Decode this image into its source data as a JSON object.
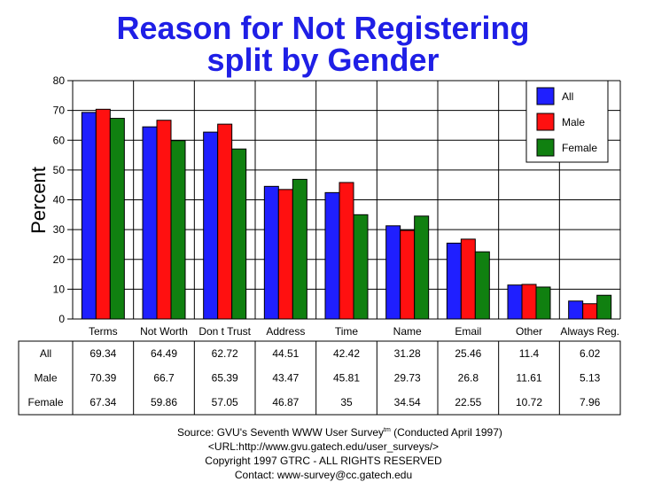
{
  "title_line1": "Reason for Not Registering",
  "title_line2": "split by Gender",
  "chart_data": {
    "type": "bar",
    "title": "Reason for Not Registering split by Gender",
    "ylabel": "Percent",
    "xlabel": "",
    "ylim": [
      0,
      80
    ],
    "yticks": [
      0,
      10,
      20,
      30,
      40,
      50,
      60,
      70,
      80
    ],
    "grid": true,
    "legend_position": "top-right",
    "categories": [
      "Terms",
      "Not Worth",
      "Don t Trust",
      "Address",
      "Time",
      "Name",
      "Email",
      "Other",
      "Always Reg."
    ],
    "series": [
      {
        "name": "All",
        "color": "#1f1fff",
        "values": [
          69.34,
          64.49,
          62.72,
          44.51,
          42.42,
          31.28,
          25.46,
          11.4,
          6.02
        ]
      },
      {
        "name": "Male",
        "color": "#ff1010",
        "values": [
          70.39,
          66.7,
          65.39,
          43.47,
          45.81,
          29.73,
          26.8,
          11.61,
          5.13
        ]
      },
      {
        "name": "Female",
        "color": "#108010",
        "values": [
          67.34,
          59.86,
          57.05,
          46.87,
          35,
          34.54,
          22.55,
          10.72,
          7.96
        ]
      }
    ],
    "table_values": [
      [
        "69.34",
        "64.49",
        "62.72",
        "44.51",
        "42.42",
        "31.28",
        "25.46",
        "11.4",
        "6.02"
      ],
      [
        "70.39",
        "66.7",
        "65.39",
        "43.47",
        "45.81",
        "29.73",
        "26.8",
        "11.61",
        "5.13"
      ],
      [
        "67.34",
        "59.86",
        "57.05",
        "46.87",
        "35",
        "34.54",
        "22.55",
        "10.72",
        "7.96"
      ]
    ]
  },
  "source": {
    "line1_prefix": "Source: GVU's Seventh WWW User Survey",
    "line1_sup": "tm",
    "line1_suffix": " (Conducted April 1997)",
    "line2": "<URL:http://www.gvu.gatech.edu/user_surveys/>",
    "line3": "Copyright 1997 GTRC - ALL RIGHTS RESERVED",
    "line4": "Contact: www-survey@cc.gatech.edu"
  }
}
